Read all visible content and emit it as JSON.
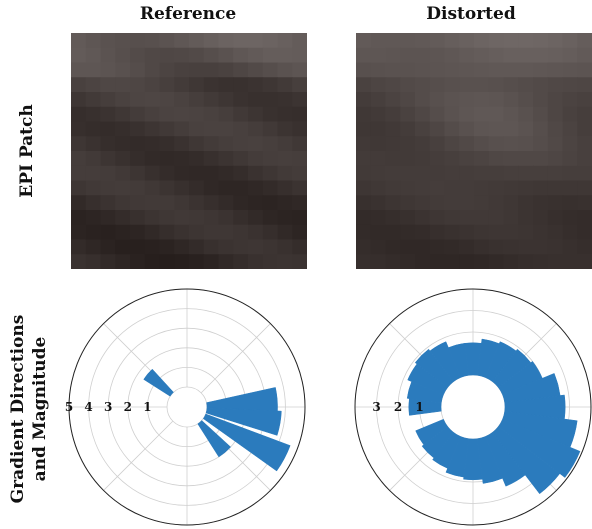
{
  "columns": [
    "Reference",
    "Distorted"
  ],
  "rows": [
    "EPI Patch",
    "Gradient Directions",
    "and Magnitude"
  ],
  "colors": {
    "bar": "#2b7bbd",
    "grid": "#cfcfcf",
    "patch_dark": "#2a2020",
    "patch_light": "#8c8080"
  },
  "chart_data": [
    {
      "type": "polar-bar",
      "panel": "Reference",
      "r_ticks": [
        "5",
        "4",
        "3",
        "2",
        "1"
      ],
      "r_tick_values": [
        5,
        4,
        3,
        2,
        1
      ],
      "angle_unit": "degrees",
      "bars": [
        {
          "angle": 140,
          "value": 1.6
        },
        {
          "angle": 5,
          "value": 3.6
        },
        {
          "angle": -10,
          "value": 3.8
        },
        {
          "angle": -28,
          "value": 4.6
        },
        {
          "angle": -50,
          "value": 2.0
        }
      ]
    },
    {
      "type": "polar-bar",
      "panel": "Distorted",
      "r_ticks": [
        "3",
        "2",
        "1"
      ],
      "r_tick_values": [
        3,
        2,
        1
      ],
      "angle_unit": "degrees",
      "bars": [
        {
          "angle": 165,
          "value": 1.6
        },
        {
          "angle": 150,
          "value": 1.8
        },
        {
          "angle": 135,
          "value": 1.9
        },
        {
          "angle": 120,
          "value": 1.8
        },
        {
          "angle": 105,
          "value": 1.5
        },
        {
          "angle": 90,
          "value": 1.5
        },
        {
          "angle": 75,
          "value": 1.7
        },
        {
          "angle": 60,
          "value": 1.8
        },
        {
          "angle": 45,
          "value": 1.9
        },
        {
          "angle": 30,
          "value": 2.0
        },
        {
          "angle": 15,
          "value": 2.6
        },
        {
          "angle": 0,
          "value": 2.8
        },
        {
          "angle": -15,
          "value": 3.4
        },
        {
          "angle": -30,
          "value": 3.9
        },
        {
          "angle": -45,
          "value": 3.6
        },
        {
          "angle": -60,
          "value": 2.5
        },
        {
          "angle": -75,
          "value": 2.1
        },
        {
          "angle": -90,
          "value": 1.9
        },
        {
          "angle": -105,
          "value": 1.8
        },
        {
          "angle": -120,
          "value": 1.6
        },
        {
          "angle": -135,
          "value": 1.5
        },
        {
          "angle": -150,
          "value": 1.4
        },
        {
          "angle": 180,
          "value": 1.5
        }
      ]
    }
  ]
}
